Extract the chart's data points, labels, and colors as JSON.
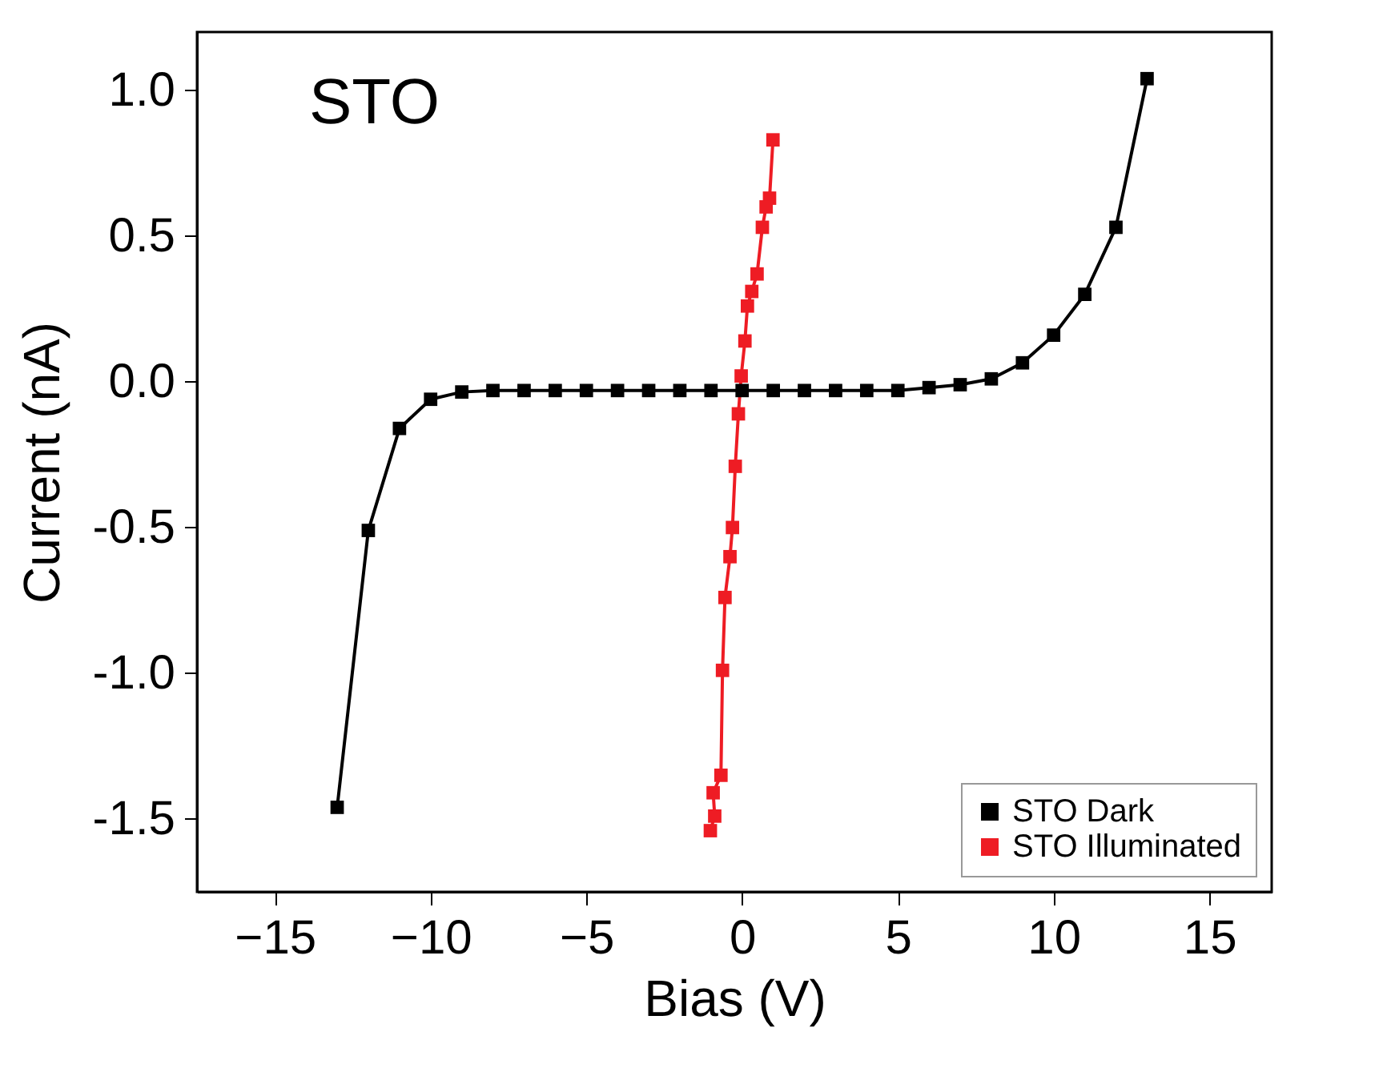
{
  "chart_data": {
    "type": "line",
    "xlabel": "Bias (V)",
    "ylabel": "Current (nA)",
    "annotations": [
      "STO"
    ],
    "xlim": [
      -17.5,
      17
    ],
    "ylim": [
      -1.75,
      1.2
    ],
    "xticks": [
      -15,
      -10,
      -5,
      0,
      5,
      10,
      15
    ],
    "yticks": [
      {
        "value": -1.5,
        "label": "-1.5"
      },
      {
        "value": -1,
        "label": "-1.0"
      },
      {
        "value": -0.5,
        "label": "-0.5"
      },
      {
        "value": 0,
        "label": "0.0"
      },
      {
        "value": 0.5,
        "label": "0.5"
      },
      {
        "value": 1,
        "label": "1.0"
      }
    ],
    "grid": false,
    "legend": "bottom right",
    "marker": "square",
    "line_style": "solid",
    "series": [
      {
        "name": "STO Dark",
        "color": "#000000",
        "x": [
          -13,
          -12,
          -11,
          -10,
          -9,
          -8,
          -7,
          -6,
          -5,
          -4,
          -3,
          -2,
          -1,
          0,
          1,
          2,
          3,
          4,
          5,
          6,
          7,
          8,
          9,
          10,
          11,
          12,
          13
        ],
        "values": [
          -1.46,
          -0.51,
          -0.16,
          -0.06,
          -0.035,
          -0.03,
          -0.03,
          -0.03,
          -0.03,
          -0.03,
          -0.03,
          -0.03,
          -0.03,
          -0.03,
          -0.03,
          -0.03,
          -0.03,
          -0.03,
          -0.03,
          -0.02,
          -0.01,
          0.01,
          0.065,
          0.16,
          0.3,
          0.53,
          1.04
        ]
      },
      {
        "name": "STO Illuminated",
        "color": "#ee1c24",
        "x": [
          0.99,
          0.88,
          0.77,
          0.65,
          0.48,
          0.31,
          0.17,
          0.09,
          -0.03,
          -0.12,
          -0.22,
          -0.31,
          -0.39,
          -0.55,
          -0.63,
          -0.68,
          -0.93,
          -0.88,
          -1.02
        ],
        "values": [
          0.83,
          0.63,
          0.6,
          0.53,
          0.37,
          0.31,
          0.26,
          0.14,
          0.02,
          -0.11,
          -0.29,
          -0.5,
          -0.6,
          -0.74,
          -0.99,
          -1.35,
          -1.41,
          -1.49,
          -1.54
        ]
      }
    ]
  }
}
